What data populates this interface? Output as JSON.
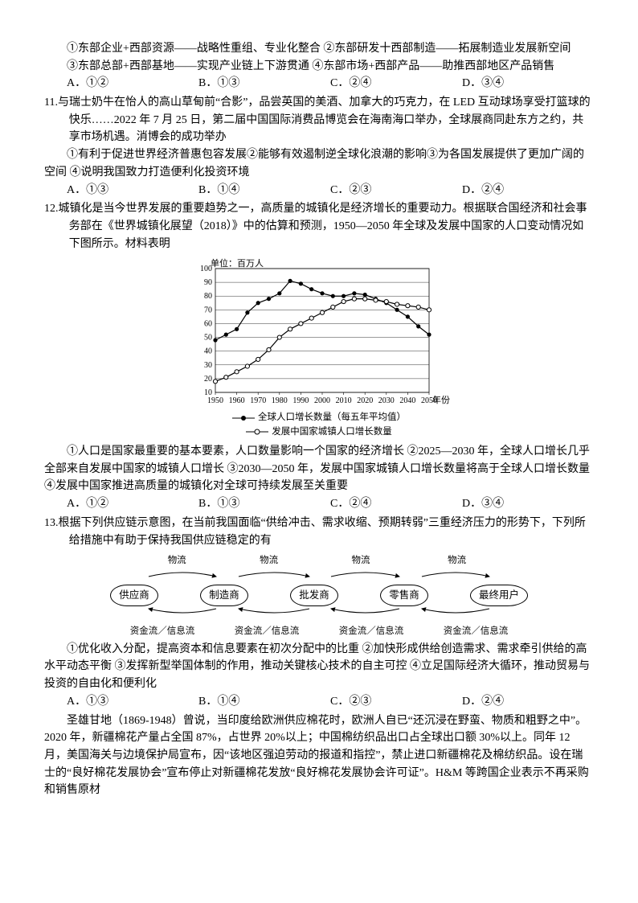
{
  "q10": {
    "stmt1": "①东部企业+西部资源——战略性重组、专业化整合 ②东部研发十西部制造——拓展制造业发展新空间",
    "stmt2": "③东部总部+西部基地——实现产业链上下游贯通 ④东部市场+西部产品——助推西部地区产品销售",
    "optA": "A．①②",
    "optB": "B．①③",
    "optC": "C．②④",
    "optD": "D．③④"
  },
  "q11": {
    "num": "11.",
    "body": "与瑞士奶牛在怡人的高山草甸前“合影”，品尝英国的美酒、加拿大的巧克力，在 LED 互动球场享受打篮球的快乐……2022 年 7 月 25 日，第二届中国国际消费品博览会在海南海口举办，全球展商同赴东方之约，共享市场机遇。消博会的成功举办",
    "stmt": "①有利于促进世界经济普惠包容发展②能够有效遏制逆全球化浪潮的影响③为各国发展提供了更加广阔的空间 ④说明我国致力打造便利化投资环境",
    "optA": "A．①③",
    "optB": "B．①④",
    "optC": "C．②③",
    "optD": "D．②④"
  },
  "q12": {
    "num": "12.",
    "body": "城镇化是当今世界发展的重要趋势之一，高质量的城镇化是经济增长的重要动力。根据联合国经济和社会事务部在《世界城镇化展望（2018）》中的估算和预测，1950—2050 年全球及发展中国家的人口变动情况如下图所示。材料表明",
    "chart": {
      "unit_label": "单位：百万人",
      "y_ticks": [
        10,
        20,
        30,
        40,
        50,
        60,
        70,
        80,
        90,
        100
      ],
      "x_ticks": [
        1950,
        1960,
        1970,
        1980,
        1990,
        2000,
        2010,
        2020,
        2030,
        2040,
        2050
      ],
      "x_label": "年份",
      "series": [
        {
          "name": "全球人口增长数量（每五年平均值）",
          "marker": "solid",
          "color": "#000000",
          "x": [
            1950,
            1955,
            1960,
            1965,
            1970,
            1975,
            1980,
            1985,
            1990,
            1995,
            2000,
            2005,
            2010,
            2015,
            2020,
            2025,
            2030,
            2035,
            2040,
            2045,
            2050
          ],
          "y": [
            48,
            52,
            56,
            68,
            75,
            78,
            82,
            91,
            89,
            85,
            82,
            80,
            80,
            82,
            81,
            78,
            75,
            70,
            65,
            58,
            52
          ]
        },
        {
          "name": "发展中国家城镇人口增长数量",
          "marker": "ring",
          "color": "#000000",
          "x": [
            1950,
            1955,
            1960,
            1965,
            1970,
            1975,
            1980,
            1985,
            1990,
            1995,
            2000,
            2005,
            2010,
            2015,
            2020,
            2025,
            2030,
            2035,
            2040,
            2045,
            2050
          ],
          "y": [
            18,
            21,
            25,
            29,
            34,
            41,
            50,
            56,
            60,
            64,
            68,
            72,
            76,
            78,
            78,
            77,
            76,
            74,
            73,
            72,
            70
          ]
        }
      ],
      "legend1": "全球人口增长数量（每五年平均值）",
      "legend2": "发展中国家城镇人口增长数量",
      "grid_color": "#000000",
      "bg": "#ffffff",
      "axis_fontsize": 10
    },
    "stmt": "①人口是国家最重要的基本要素，人口数量影响一个国家的经济增长 ②2025—2030 年，全球人口增长几乎全部来自发展中国家的城镇人口增长 ③2030—2050 年，发展中国家城镇人口增长数量将高于全球人口增长数量 ④发展中国家推进高质量的城镇化对全球可持续发展至关重要",
    "optA": "A．①②",
    "optB": "B．①③",
    "optC": "C．②④",
    "optD": "D．③④"
  },
  "q13": {
    "num": "13.",
    "body": "根据下列供应链示意图，在当前我国面临“供给冲击、需求收缩、预期转弱”三重经济压力的形势下，下列所给措施中有助于保持我国供应链稳定的有",
    "supply": {
      "top_label": "物流",
      "nodes": [
        "供应商",
        "制造商",
        "批发商",
        "零售商",
        "最终用户"
      ],
      "bottom_label": "资金流／信息流"
    },
    "stmt": "①优化收入分配，提高资本和信息要素在初次分配中的比重 ②加快形成供给创造需求、需求牵引供给的高水平动态平衡 ③发挥新型举国体制的作用，推动关键核心技术的自主可控 ④立足国际经济大循环，推动贸易与投资的自由化和便利化",
    "optA": "A．①③",
    "optB": "B．①④",
    "optC": "C．②③",
    "optD": "D．②④"
  },
  "passage": {
    "p1": "圣雄甘地（1869-1948）曾说，当印度给欧洲供应棉花时，欧洲人自已“还沉浸在野蛮、物质和粗野之中”。2020 年，新疆棉花产量占全国 87%，占世界 20%以上；中国棉纺织品出口占全球出口额 30%以上。同年 12 月，美国海关与边境保护局宣布，因“该地区强迫劳动的报道和指控”，禁止进口新疆棉花及棉纺织品。设在瑞士的“良好棉花发展协会”宣布停止对新疆棉花发放“良好棉花发展协会许可证”。H&M 等跨国企业表示不再采购和销售原材"
  }
}
